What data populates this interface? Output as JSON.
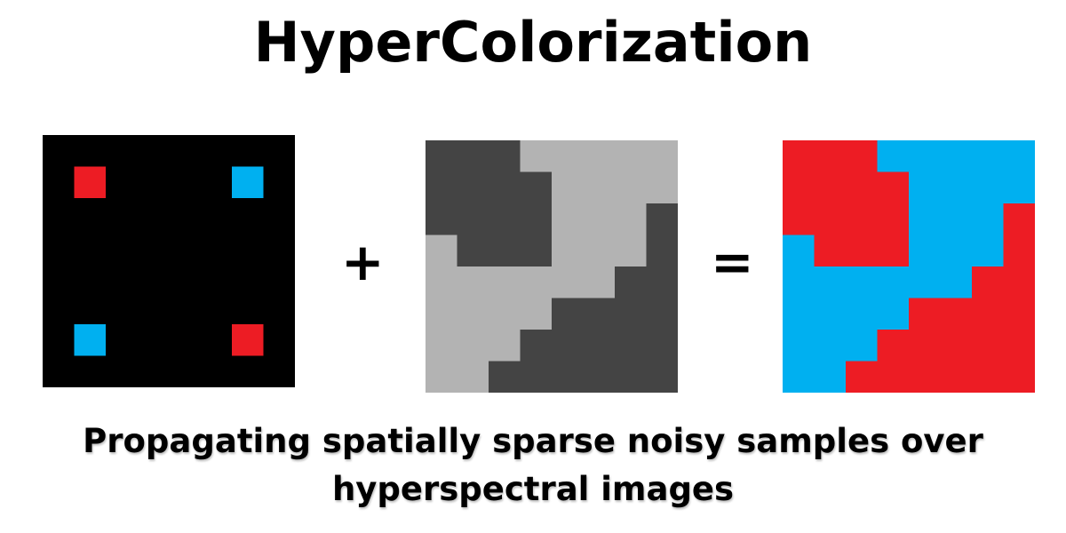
{
  "title": "HyperColorization",
  "operators": {
    "plus": "+",
    "equals": "="
  },
  "caption": "Propagating spatially sparse noisy samples over hyperspectral images",
  "colors": {
    "red": "#ed1c24",
    "blue": "#00b0f0",
    "black": "#000000",
    "dark_gray": "#444444",
    "light_gray": "#b3b3b3"
  },
  "diagram": {
    "sparse_samples": [
      {
        "class": "red",
        "position": "top-left"
      },
      {
        "class": "blue",
        "position": "top-right"
      },
      {
        "class": "blue",
        "position": "bottom-left"
      },
      {
        "class": "red",
        "position": "bottom-right"
      }
    ],
    "grayscale_regions": [
      "dark",
      "light"
    ],
    "result_classes": [
      "red",
      "blue"
    ]
  }
}
